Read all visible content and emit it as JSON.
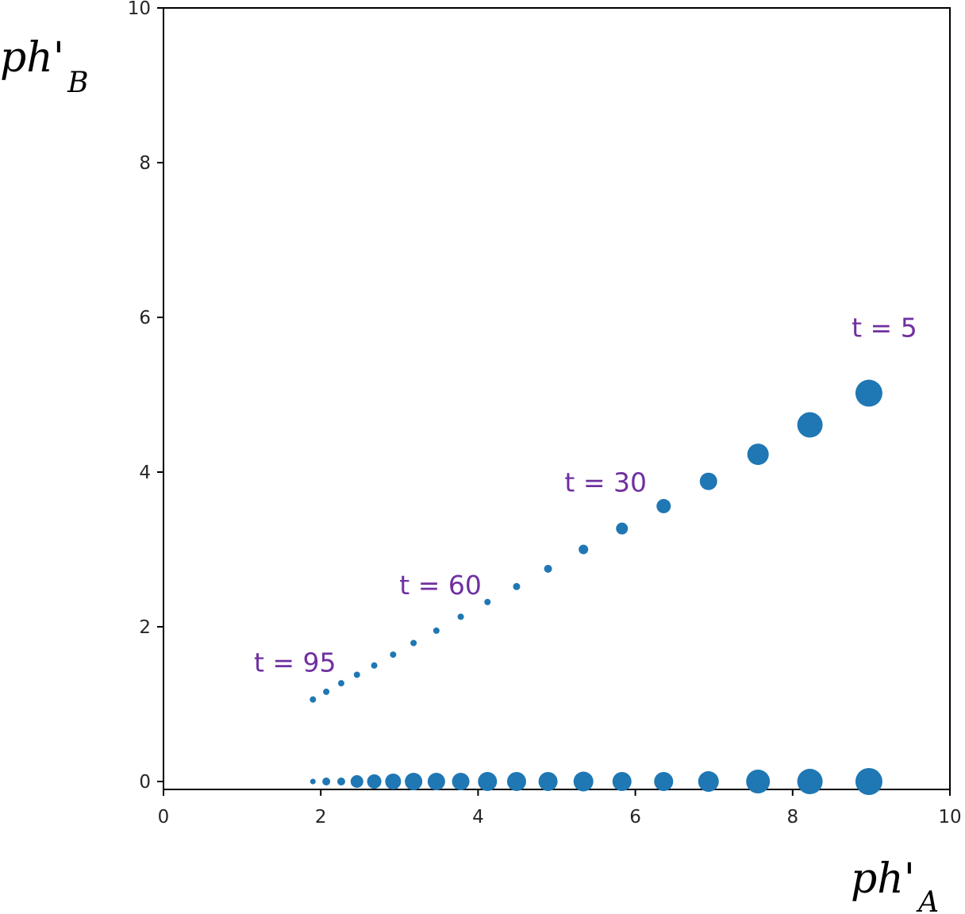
{
  "chart_data": {
    "type": "scatter",
    "title": "",
    "xlabel": {
      "main": "ph'",
      "sub": "A"
    },
    "ylabel": {
      "main": "ph'",
      "sub": "B"
    },
    "xlim": [
      0,
      10
    ],
    "ylim": [
      0,
      10
    ],
    "xticks": [
      "0",
      "2",
      "4",
      "6",
      "8",
      "10"
    ],
    "yticks": [
      "0",
      "2",
      "4",
      "6",
      "8",
      "10"
    ],
    "grid": false,
    "marker_color": "#1f77b4",
    "annotation_color": "#7030a0",
    "series": [
      {
        "points": [
          {
            "x": 8.97,
            "y": 5.02,
            "size": 17
          },
          {
            "x": 8.22,
            "y": 4.61,
            "size": 16
          },
          {
            "x": 7.56,
            "y": 4.23,
            "size": 13.5
          },
          {
            "x": 6.93,
            "y": 3.88,
            "size": 11
          },
          {
            "x": 6.36,
            "y": 3.56,
            "size": 9
          },
          {
            "x": 5.83,
            "y": 3.27,
            "size": 7.5
          },
          {
            "x": 5.34,
            "y": 3.0,
            "size": 6
          },
          {
            "x": 4.89,
            "y": 2.75,
            "size": 5
          },
          {
            "x": 4.49,
            "y": 2.52,
            "size": 4.5
          },
          {
            "x": 4.12,
            "y": 2.32,
            "size": 4
          },
          {
            "x": 3.78,
            "y": 2.13,
            "size": 4
          },
          {
            "x": 3.47,
            "y": 1.95,
            "size": 4
          },
          {
            "x": 3.18,
            "y": 1.79,
            "size": 4
          },
          {
            "x": 2.92,
            "y": 1.64,
            "size": 4
          },
          {
            "x": 2.68,
            "y": 1.5,
            "size": 4
          },
          {
            "x": 2.46,
            "y": 1.38,
            "size": 4
          },
          {
            "x": 2.26,
            "y": 1.27,
            "size": 4
          },
          {
            "x": 2.07,
            "y": 1.16,
            "size": 4
          },
          {
            "x": 1.9,
            "y": 1.06,
            "size": 4
          }
        ]
      },
      {
        "points": [
          {
            "x": 8.97,
            "y": 0,
            "size": 17
          },
          {
            "x": 8.22,
            "y": 0,
            "size": 16
          },
          {
            "x": 7.56,
            "y": 0,
            "size": 15
          },
          {
            "x": 6.93,
            "y": 0,
            "size": 13
          },
          {
            "x": 6.36,
            "y": 0,
            "size": 12
          },
          {
            "x": 5.83,
            "y": 0,
            "size": 12
          },
          {
            "x": 5.34,
            "y": 0,
            "size": 12.5
          },
          {
            "x": 4.89,
            "y": 0,
            "size": 12
          },
          {
            "x": 4.49,
            "y": 0,
            "size": 12
          },
          {
            "x": 4.12,
            "y": 0,
            "size": 12
          },
          {
            "x": 3.78,
            "y": 0,
            "size": 11
          },
          {
            "x": 3.47,
            "y": 0,
            "size": 11
          },
          {
            "x": 3.18,
            "y": 0,
            "size": 11
          },
          {
            "x": 2.92,
            "y": 0,
            "size": 10
          },
          {
            "x": 2.68,
            "y": 0,
            "size": 9
          },
          {
            "x": 2.46,
            "y": 0,
            "size": 8
          },
          {
            "x": 2.26,
            "y": 0,
            "size": 5
          },
          {
            "x": 2.07,
            "y": 0,
            "size": 5
          },
          {
            "x": 1.9,
            "y": 0,
            "size": 3.5
          }
        ]
      }
    ],
    "annotations": [
      {
        "text": "t = 5",
        "x": 8.75,
        "y": 5.75
      },
      {
        "text": "t = 30",
        "x": 5.1,
        "y": 3.75
      },
      {
        "text": "t = 60",
        "x": 3.0,
        "y": 2.42
      },
      {
        "text": "t = 95",
        "x": 1.15,
        "y": 1.42
      }
    ]
  }
}
